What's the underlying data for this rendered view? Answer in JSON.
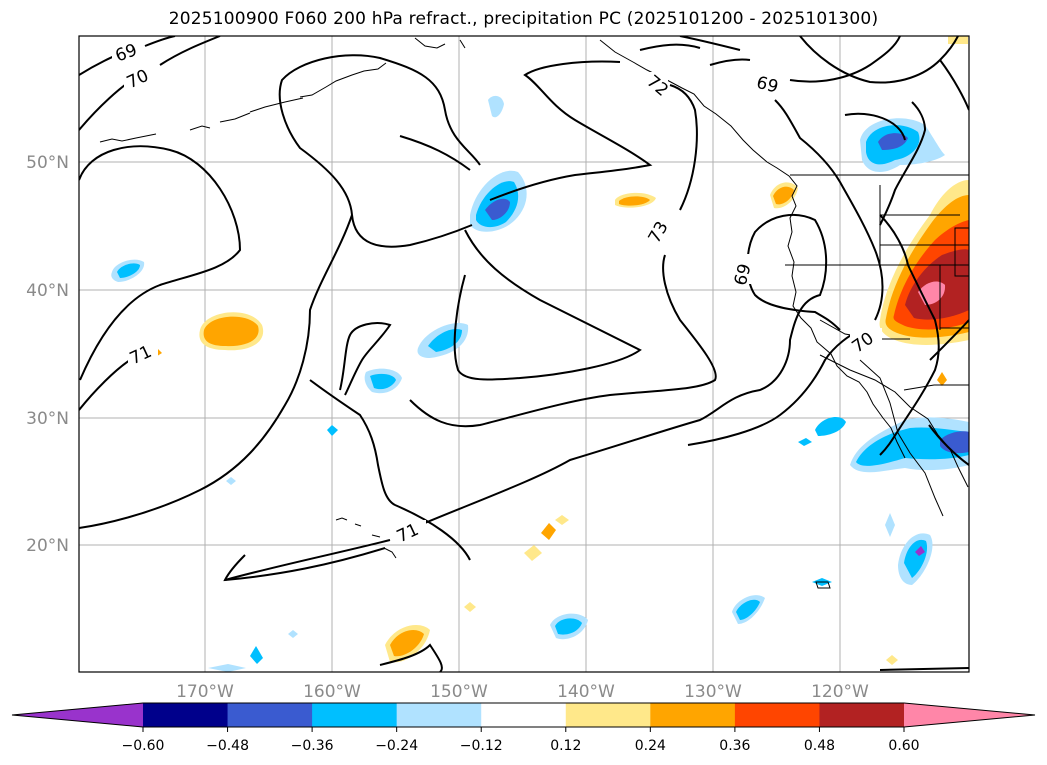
{
  "title": "2025100900 F060 200 hPa refract., precipitation PC (2025101200 - 2025101300)",
  "map": {
    "lat_labels": [
      "50°N",
      "40°N",
      "30°N",
      "20°N"
    ],
    "lon_labels": [
      "170°W",
      "160°W",
      "150°W",
      "140°W",
      "130°W",
      "120°W"
    ],
    "contour_labels": [
      "69",
      "70",
      "69",
      "73",
      "72",
      "71",
      "69",
      "70",
      "71"
    ],
    "grid": true
  },
  "colorbar": {
    "labels": [
      "−0.60",
      "−0.48",
      "−0.36",
      "−0.24",
      "−0.12",
      "0.12",
      "0.24",
      "0.36",
      "0.48",
      "0.60"
    ],
    "colors": [
      "#9933cc",
      "#00008b",
      "#3a5bd0",
      "#00bfff",
      "#b0e2ff",
      "#ffffff",
      "#ffe88a",
      "#ffa500",
      "#ff4500",
      "#b22222",
      "#ff86a8"
    ]
  },
  "colors": {
    "grid": "#b0b0b0",
    "tick_label": "#8a8a8a"
  }
}
